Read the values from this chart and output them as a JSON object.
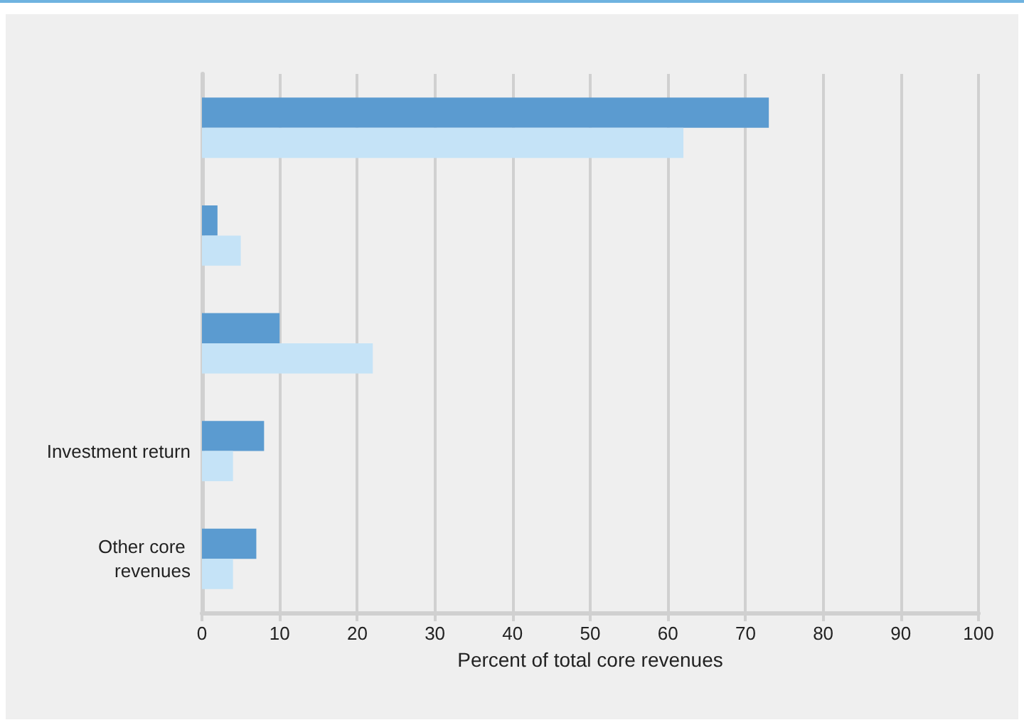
{
  "chart_data": {
    "type": "bar",
    "orientation": "horizontal",
    "xlabel": "Percent of total core revenues",
    "categories": [
      null,
      null,
      null,
      "Investment return",
      "Other core revenues"
    ],
    "series": [
      {
        "color": "#5b9bd0",
        "values": [
          73,
          2,
          10,
          8,
          7
        ]
      },
      {
        "color": "#c5e3f7",
        "values": [
          62,
          5,
          22,
          4,
          4
        ]
      }
    ],
    "xlim": [
      0,
      100
    ],
    "xticks": [
      0,
      10,
      20,
      30,
      40,
      50,
      60,
      70,
      80,
      90,
      100
    ],
    "grid": "x"
  }
}
